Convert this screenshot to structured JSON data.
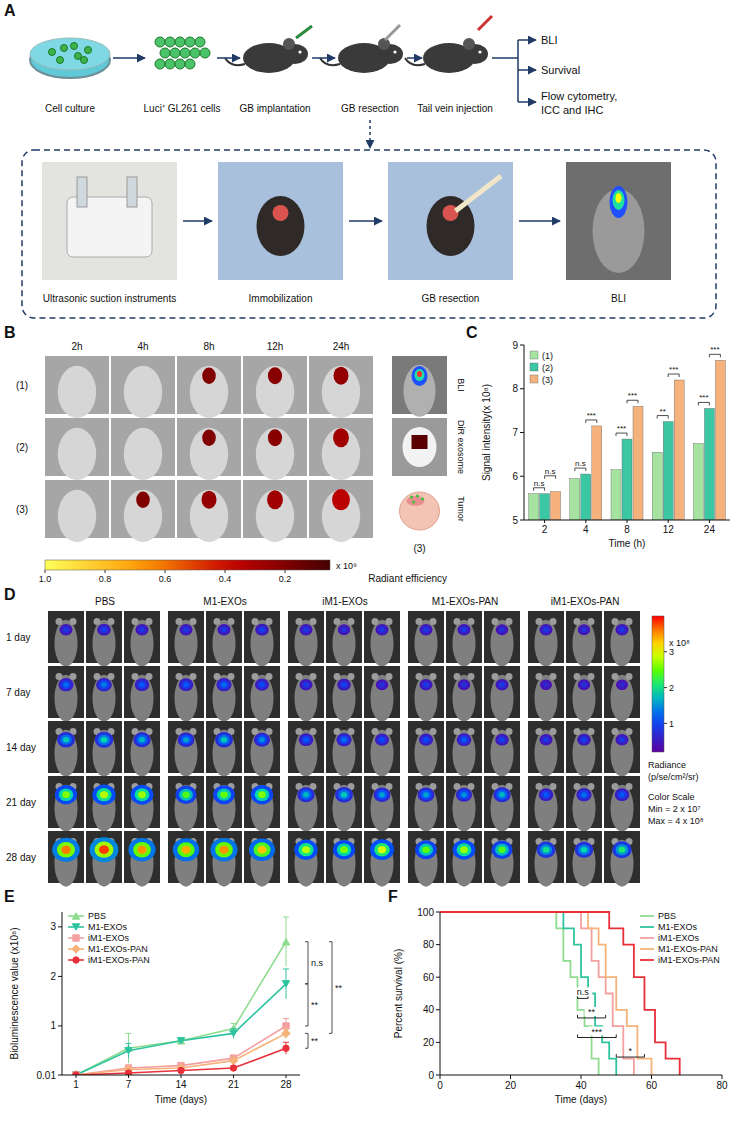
{
  "panel_labels": [
    "A",
    "B",
    "C",
    "D",
    "E",
    "F"
  ],
  "panel_a": {
    "steps": [
      "Cell culture",
      "Luci⁺ GL261 cells",
      "GB implantation",
      "GB resection",
      "Tail vein injection"
    ],
    "outcomes": [
      "BLI",
      "Survival",
      "Flow cytometry,",
      "ICC and IHC"
    ],
    "resection_steps": [
      "Ultrasonic suction instruments",
      "Immobilization",
      "GB resection",
      "BLI"
    ]
  },
  "panel_b": {
    "times": [
      "2h",
      "4h",
      "8h",
      "12h",
      "24h"
    ],
    "rows": [
      "(1)",
      "(2)",
      "(3)"
    ],
    "signal": [
      [
        null,
        null,
        0.2,
        0.22,
        0.25
      ],
      [
        null,
        null,
        0.2,
        0.22,
        0.28
      ],
      [
        null,
        0.2,
        0.25,
        0.28,
        0.35
      ]
    ],
    "side_labels": [
      "BLI",
      "DiR exosome",
      "Tumor"
    ],
    "side_row": "(3)",
    "colorbar": {
      "title": "Radiant efficiency",
      "multiplier": "x 10⁹",
      "range": [
        1.0,
        0.05
      ],
      "ticks": [
        {
          "value": 1,
          "label": "1.0"
        },
        0.8,
        0.6,
        0.4,
        0.2
      ]
    }
  },
  "panel_d": {
    "groups": [
      "PBS",
      "M1-EXOs",
      "iM1-EXOs",
      "M1-EXOs-PAN",
      "iM1-EXOs-PAN"
    ],
    "days": [
      "1 day",
      "7 day",
      "14 day",
      "21 day",
      "28 day"
    ],
    "signal": [
      [
        0.9,
        1.0,
        0.9,
        0.9,
        0.9,
        1.0,
        0.9,
        0.8,
        0.9,
        0.9,
        0.9,
        0.8,
        0.9,
        0.8,
        0.9
      ],
      [
        1.3,
        1.4,
        1.2,
        1.2,
        1.3,
        1.1,
        0.9,
        1.0,
        0.8,
        0.9,
        0.8,
        0.9,
        0.7,
        0.8,
        0.7
      ],
      [
        1.8,
        1.9,
        1.7,
        1.6,
        1.8,
        1.5,
        1.2,
        1.3,
        1.1,
        1.1,
        1.2,
        1.0,
        0.9,
        1.0,
        0.9
      ],
      [
        2.6,
        2.8,
        2.7,
        2.4,
        2.5,
        2.6,
        1.7,
        1.8,
        1.6,
        1.6,
        1.5,
        1.7,
        1.2,
        1.3,
        1.2
      ],
      [
        3.6,
        3.8,
        3.5,
        3.4,
        3.5,
        3.3,
        2.8,
        2.6,
        2.9,
        2.5,
        2.7,
        2.4,
        2.0,
        1.9,
        2.1
      ]
    ],
    "colorbar": {
      "title_lines": [
        "Radiance",
        "(p/se/cm²/sr)"
      ],
      "multiplier": "x 10⁸",
      "range": [
        0.2,
        4
      ],
      "ticks": [
        1,
        2,
        3
      ],
      "scale_lines": [
        "Color Scale",
        "Min = 2 x 10⁷",
        "Max = 4 x 10⁸"
      ]
    }
  },
  "chart_data": [
    {
      "type": "bar",
      "x_label": "Time (h)",
      "y_label": "Signal intensity(x 10⁸)",
      "categories": [
        "2",
        "4",
        "8",
        "12",
        "24"
      ],
      "series": [
        {
          "name": "(1)",
          "color": "#a6e3a1",
          "values": [
            5.6,
            5.95,
            6.15,
            6.55,
            6.75
          ]
        },
        {
          "name": "(2)",
          "color": "#3cc7a4",
          "values": [
            5.6,
            6.05,
            6.85,
            7.25,
            7.55
          ]
        },
        {
          "name": "(3)",
          "color": "#f6b27c",
          "values": [
            5.65,
            7.15,
            7.6,
            8.2,
            8.65
          ]
        }
      ],
      "ylim": [
        5,
        9
      ],
      "yticks": [
        5,
        6,
        7,
        8,
        9
      ],
      "legend": "top-left",
      "annotations": [
        {
          "category": "2",
          "between": [
            "(1)",
            "(2)"
          ],
          "text": "n.s"
        },
        {
          "category": "2",
          "between": [
            "(2)",
            "(3)"
          ],
          "text": "n.s"
        },
        {
          "category": "4",
          "between": [
            "(1)",
            "(2)"
          ],
          "text": "n.s"
        },
        {
          "category": "4",
          "between": [
            "(2)",
            "(3)"
          ],
          "text": "***"
        },
        {
          "category": "8",
          "between": [
            "(1)",
            "(2)"
          ],
          "text": "***"
        },
        {
          "category": "8",
          "between": [
            "(2)",
            "(3)"
          ],
          "text": "***"
        },
        {
          "category": "12",
          "between": [
            "(1)",
            "(2)"
          ],
          "text": "**"
        },
        {
          "category": "12",
          "between": [
            "(2)",
            "(3)"
          ],
          "text": "***"
        },
        {
          "category": "24",
          "between": [
            "(1)",
            "(2)"
          ],
          "text": "***"
        },
        {
          "category": "24",
          "between": [
            "(2)",
            "(3)"
          ],
          "text": "***"
        }
      ]
    },
    {
      "type": "line",
      "x_label": "Time (days)",
      "y_label": "Bioluminescence value (x10⁸)",
      "categories": [
        "1",
        "7",
        "14",
        "21",
        "28"
      ],
      "series": [
        {
          "name": "PBS",
          "color": "#8fdc8f",
          "marker": "triangle-up",
          "values": [
            0.01,
            0.55,
            0.7,
            0.95,
            2.7
          ],
          "errors": [
            0,
            0.3,
            0.05,
            0.1,
            0.5
          ]
        },
        {
          "name": "M1-EXOs",
          "color": "#2ec4a0",
          "marker": "triangle-down",
          "values": [
            0.01,
            0.5,
            0.7,
            0.85,
            1.85
          ],
          "errors": [
            0,
            0.15,
            0.05,
            0.1,
            0.3
          ]
        },
        {
          "name": "iM1-EXOs",
          "color": "#f4a0a0",
          "marker": "square",
          "values": [
            0.01,
            0.15,
            0.2,
            0.35,
            1.0
          ],
          "errors": [
            0,
            0.05,
            0.05,
            0.05,
            0.15
          ]
        },
        {
          "name": "M1-EXOs-PAN",
          "color": "#f5b37a",
          "marker": "diamond",
          "values": [
            0.01,
            0.12,
            0.15,
            0.3,
            0.85
          ],
          "errors": [
            0,
            0.05,
            0.05,
            0.05,
            0.1
          ]
        },
        {
          "name": "iM1-EXOs-PAN",
          "color": "#e8303a",
          "marker": "circle",
          "values": [
            0.01,
            0.05,
            0.1,
            0.15,
            0.55
          ],
          "errors": [
            0,
            0.03,
            0.03,
            0.05,
            0.12
          ]
        }
      ],
      "ylim": [
        0.01,
        3.3
      ],
      "yticks": [
        0.01,
        1,
        2,
        3
      ],
      "legend": "top-left",
      "annotations": [
        {
          "between": [
            "PBS",
            "M1-EXOs"
          ],
          "text": "n.s"
        },
        {
          "between": [
            "M1-EXOs",
            "iM1-EXOs"
          ],
          "text": "**"
        },
        {
          "between": [
            "PBS",
            "M1-EXOs-PAN"
          ],
          "text": "**"
        },
        {
          "between": [
            "M1-EXOs-PAN",
            "iM1-EXOs-PAN"
          ],
          "text": "**"
        }
      ]
    },
    {
      "type": "line",
      "x_label": "Time (days)",
      "y_label": "Percent survival (%)",
      "series": [
        {
          "name": "PBS",
          "color": "#8fdc8f",
          "line_style": "step",
          "x": [
            0,
            33,
            35,
            37,
            39,
            41,
            43,
            45
          ],
          "values": [
            100,
            90,
            70,
            60,
            40,
            30,
            10,
            0
          ]
        },
        {
          "name": "M1-EXOs",
          "color": "#2ec4a0",
          "line_style": "step",
          "x": [
            0,
            35,
            38,
            40,
            42,
            44,
            46,
            48,
            50
          ],
          "values": [
            100,
            90,
            80,
            60,
            50,
            30,
            20,
            10,
            0
          ]
        },
        {
          "name": "iM1-EXOs",
          "color": "#f4a0a0",
          "line_style": "step",
          "x": [
            0,
            40,
            43,
            45,
            47,
            49,
            52,
            55
          ],
          "values": [
            100,
            90,
            70,
            60,
            50,
            30,
            10,
            0
          ]
        },
        {
          "name": "M1-EXOs-PAN",
          "color": "#f5b37a",
          "line_style": "step",
          "x": [
            0,
            42,
            45,
            47,
            50,
            53,
            56,
            60
          ],
          "values": [
            100,
            90,
            80,
            60,
            40,
            30,
            10,
            0
          ]
        },
        {
          "name": "iM1-EXOs-PAN",
          "color": "#e8303a",
          "line_style": "step",
          "x": [
            0,
            48,
            52,
            55,
            58,
            61,
            64,
            68
          ],
          "values": [
            100,
            90,
            80,
            60,
            40,
            20,
            10,
            0
          ]
        }
      ],
      "xlim": [
        0,
        80
      ],
      "xticks": [
        0,
        20,
        40,
        60,
        80
      ],
      "ylim": [
        0,
        100
      ],
      "yticks": [
        0,
        20,
        40,
        60,
        80,
        100
      ],
      "legend": "top-right",
      "annotations": [
        {
          "between": [
            "PBS",
            "M1-EXOs"
          ],
          "text": "n.s"
        },
        {
          "between": [
            "PBS",
            "iM1-EXOs"
          ],
          "text": "**"
        },
        {
          "between": [
            "PBS",
            "M1-EXOs-PAN"
          ],
          "text": "***"
        },
        {
          "between": [
            "M1-EXOs-PAN",
            "iM1-EXOs-PAN"
          ],
          "text": "*"
        }
      ]
    }
  ]
}
